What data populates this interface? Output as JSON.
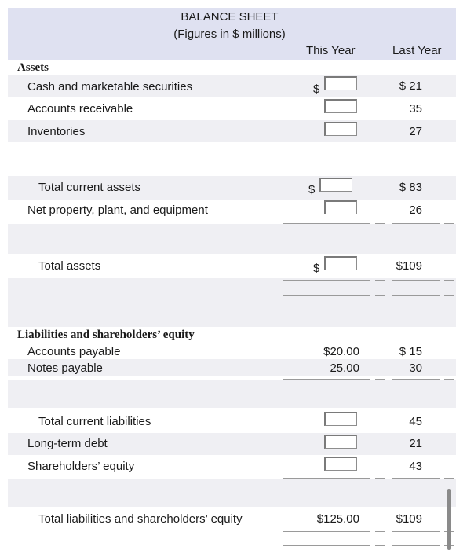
{
  "header": {
    "title": "BALANCE SHEET",
    "subtitle": "(Figures in $ millions)",
    "col_this_year": "This Year",
    "col_last_year": "Last Year"
  },
  "assets": {
    "heading": "Assets",
    "cash": {
      "label": "Cash and marketable securities",
      "dollar": "$",
      "last": "$ 21"
    },
    "receivable": {
      "label": "Accounts receivable",
      "last": "35"
    },
    "inventories": {
      "label": "Inventories",
      "last": "27"
    },
    "total_current": {
      "label": "Total current assets",
      "dollar": "$",
      "last": "$ 83"
    },
    "ppe": {
      "label": "Net property, plant, and equipment",
      "last": "26"
    },
    "total": {
      "label": "Total assets",
      "dollar": "$",
      "last": "$109"
    }
  },
  "liabilities": {
    "heading": "Liabilities and shareholders’ equity",
    "payable": {
      "label": "Accounts payable",
      "this": "$20.00",
      "last": "$ 15"
    },
    "notes": {
      "label": "Notes payable",
      "this": "25.00",
      "last": "30"
    },
    "total_current": {
      "label": "Total current liabilities",
      "last": "45"
    },
    "longterm": {
      "label": "Long-term debt",
      "last": "21"
    },
    "equity": {
      "label": "Shareholders’ equity",
      "last": "43"
    },
    "total": {
      "label": "Total liabilities and shareholders’ equity",
      "this": "$125.00",
      "last": "$109"
    }
  }
}
